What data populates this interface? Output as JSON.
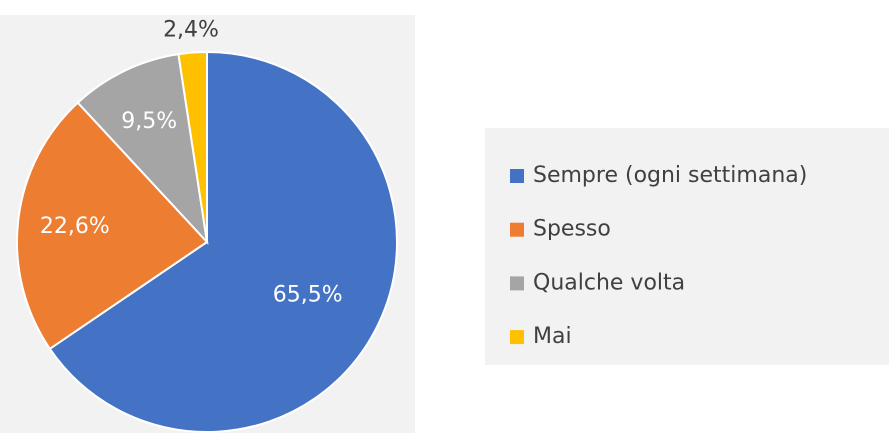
{
  "chart_data": {
    "type": "pie",
    "categories": [
      "Sempre (ogni settimana)",
      "Spesso",
      "Qualche volta",
      "Mai"
    ],
    "values": [
      65.5,
      22.6,
      9.5,
      2.4
    ],
    "value_labels": [
      "65,5%",
      "22,6%",
      "9,5%",
      "2,4%"
    ],
    "colors": [
      "#4472c4",
      "#ed7d31",
      "#a5a5a5",
      "#ffc000"
    ],
    "legend": "right"
  }
}
